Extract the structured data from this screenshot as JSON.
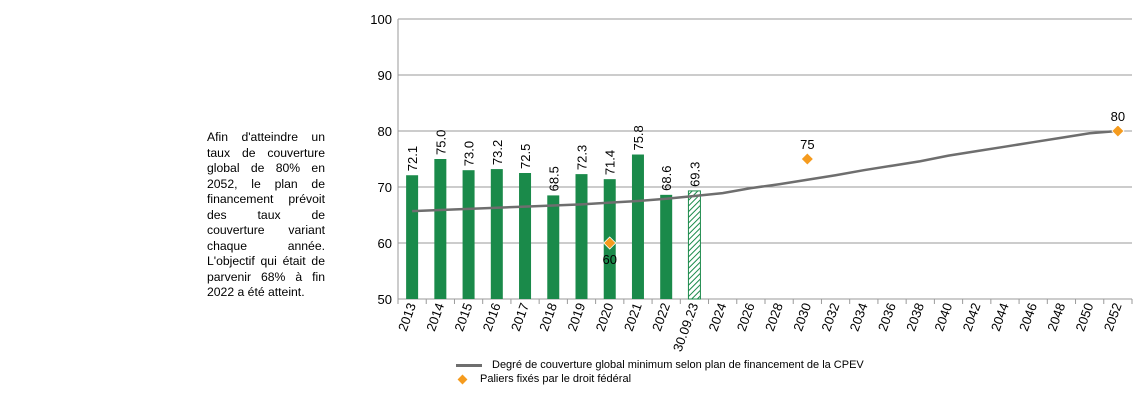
{
  "side_text": "Afin d'atteindre un taux de couverture global de 80% en 2052, le plan de financement prévoit des taux de couverture variant chaque année. L'objectif qui était de parvenir 68% à fin 2022 a été atteint.",
  "colors": {
    "bar": "#1a8a4a",
    "hatch_bar": "#1a8a4a",
    "line": "#6e6e6e",
    "milestone": "#f59b1e",
    "grid": "#9a9a9a"
  },
  "legend": {
    "line_label": "Degré de couverture global minimum selon plan de financement de la CPEV",
    "marker_label": "Paliers fixés par le droit fédéral"
  },
  "chart_data": {
    "type": "bar",
    "categories": [
      "2013",
      "2014",
      "2015",
      "2016",
      "2017",
      "2018",
      "2019",
      "2020",
      "2021",
      "2022",
      "30.09.23",
      "2024",
      "2026",
      "2028",
      "2030",
      "2032",
      "2034",
      "2036",
      "2038",
      "2040",
      "2042",
      "2044",
      "2046",
      "2048",
      "2050",
      "2052"
    ],
    "ylim": [
      50,
      100
    ],
    "yticks": [
      50,
      60,
      70,
      80,
      90,
      100
    ],
    "grid": true,
    "series": [
      {
        "kind": "bar",
        "values": [
          72.1,
          75.0,
          73.0,
          73.2,
          72.5,
          68.5,
          72.3,
          71.4,
          75.8,
          68.6,
          69.3,
          null,
          null,
          null,
          null,
          null,
          null,
          null,
          null,
          null,
          null,
          null,
          null,
          null,
          null,
          null
        ],
        "labels": [
          "72.1",
          "75.0",
          "73.0",
          "73.2",
          "72.5",
          "68.5",
          "72.3",
          "71.4",
          "75.8",
          "68.6",
          "69.3"
        ],
        "hatched_index": 10
      },
      {
        "kind": "line",
        "name": "Degré de couverture global minimum selon plan de financement de la CPEV",
        "values": [
          65.7,
          65.9,
          66.1,
          66.3,
          66.5,
          66.7,
          66.9,
          67.2,
          67.5,
          67.9,
          68.4,
          68.9,
          69.8,
          70.5,
          71.3,
          72.1,
          73.0,
          73.8,
          74.6,
          75.6,
          76.4,
          77.2,
          78.0,
          78.8,
          79.6,
          80.0
        ]
      },
      {
        "kind": "marker",
        "name": "Paliers fixés par le droit fédéral",
        "points": [
          {
            "category": "2020",
            "value": 60,
            "label": "60"
          },
          {
            "category": "2030",
            "value": 75,
            "label": "75"
          },
          {
            "category": "2052",
            "value": 80,
            "label": "80"
          }
        ]
      }
    ]
  }
}
